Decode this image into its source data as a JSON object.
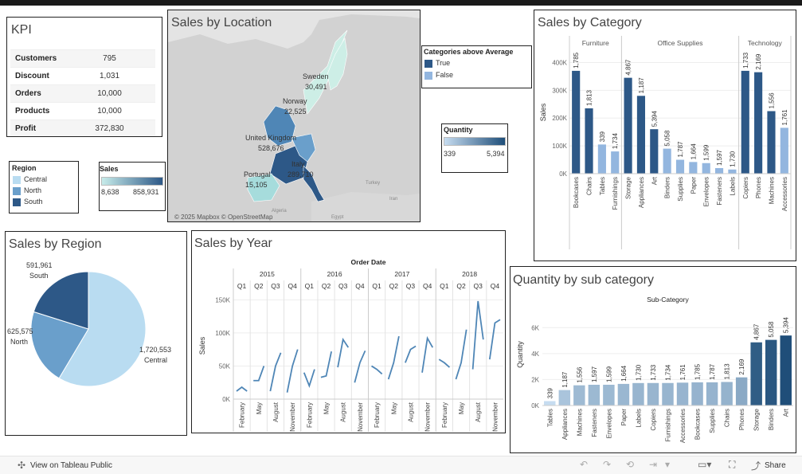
{
  "kpi": {
    "title": "KPI",
    "rows": [
      {
        "label": "Customers",
        "value": "795"
      },
      {
        "label": "Discount",
        "value": "1,031"
      },
      {
        "label": "Orders",
        "value": "10,000"
      },
      {
        "label": "Products",
        "value": "10,000"
      },
      {
        "label": "Profit",
        "value": "372,830"
      }
    ]
  },
  "region_legend": {
    "title": "Region",
    "items": [
      {
        "label": "Central",
        "color": "#b9dcf1"
      },
      {
        "label": "North",
        "color": "#6a9fcb"
      },
      {
        "label": "South",
        "color": "#2d5887"
      }
    ]
  },
  "sales_legend": {
    "title": "Sales",
    "min": "8,638",
    "max": "858,931"
  },
  "map": {
    "title": "Sales by Location",
    "attribution": "© 2025 Mapbox © OpenStreetMap",
    "labels": [
      {
        "name": "Sweden",
        "value": "30,491"
      },
      {
        "name": "Norway",
        "value": "22,525"
      },
      {
        "name": "United Kingdom",
        "value": "528,676"
      },
      {
        "name": "Portugal",
        "value": "15,105"
      },
      {
        "name": "Italy",
        "value": "289,710"
      }
    ],
    "basemap_labels": [
      "Turkey",
      "Iran",
      "Algeria",
      "Egypt"
    ]
  },
  "cat_avg_legend": {
    "title": "Categories above Average",
    "items": [
      {
        "label": "True",
        "color": "#2d5887"
      },
      {
        "label": "False",
        "color": "#93b6df"
      }
    ]
  },
  "quantity_legend": {
    "title": "Quantity",
    "min": "339",
    "max": "5,394"
  },
  "sales_by_category": {
    "title": "Sales by Category",
    "y_label": "Sales",
    "groups": [
      "Furniture",
      "Office Supplies",
      "Technology"
    ],
    "y_ticks": [
      "0K",
      "100K",
      "200K",
      "300K",
      "400K"
    ]
  },
  "sales_by_region": {
    "title": "Sales by Region",
    "slices": [
      {
        "label": "Central",
        "value": "1,720,553",
        "color": "#b9dcf1"
      },
      {
        "label": "North",
        "value": "625,575",
        "color": "#6a9fcb"
      },
      {
        "label": "South",
        "value": "591,961",
        "color": "#2d5887"
      }
    ]
  },
  "sales_by_year": {
    "title": "Sales by Year",
    "header": "Order Date",
    "y_label": "Sales",
    "years": [
      "2015",
      "2016",
      "2017",
      "2018"
    ],
    "quarters": [
      "Q1",
      "Q2",
      "Q3",
      "Q4"
    ],
    "months": [
      "February",
      "May",
      "August",
      "November"
    ],
    "y_ticks": [
      "0K",
      "50K",
      "100K",
      "150K"
    ]
  },
  "quantity_by_sub": {
    "title": "Quantity by sub category",
    "header": "Sub-Category",
    "y_label": "Quantity",
    "y_ticks": [
      "0K",
      "2K",
      "4K",
      "6K"
    ]
  },
  "footer": {
    "view_label": "View on Tableau Public",
    "share_label": "Share"
  },
  "chart_data": [
    {
      "type": "bar",
      "title": "Sales by Category",
      "ylabel": "Sales",
      "ylim": [
        0,
        450000
      ],
      "groups": [
        {
          "name": "Furniture",
          "categories": [
            "Bookcases",
            "Chairs",
            "Tables",
            "Furnishings"
          ],
          "values": [
            370000,
            235000,
            105000,
            80000
          ],
          "labels": [
            "1,785",
            "1,813",
            "339",
            "1,734"
          ],
          "above_avg": [
            true,
            true,
            false,
            false
          ]
        },
        {
          "name": "Office Supplies",
          "categories": [
            "Storage",
            "Appliances",
            "Art",
            "Binders",
            "Supplies",
            "Paper",
            "Envelopes",
            "Fasteners",
            "Labels"
          ],
          "values": [
            345000,
            280000,
            160000,
            90000,
            50000,
            42000,
            38000,
            20000,
            15000
          ],
          "labels": [
            "4,867",
            "1,187",
            "5,394",
            "5,058",
            "1,787",
            "1,664",
            "1,599",
            "1,597",
            "1,730"
          ],
          "above_avg": [
            true,
            true,
            true,
            false,
            false,
            false,
            false,
            false,
            false
          ]
        },
        {
          "name": "Technology",
          "categories": [
            "Copiers",
            "Phones",
            "Machines",
            "Accessories"
          ],
          "values": [
            370000,
            365000,
            225000,
            165000
          ],
          "labels": [
            "1,733",
            "2,169",
            "1,556",
            "1,761"
          ],
          "above_avg": [
            true,
            true,
            true,
            false
          ]
        }
      ]
    },
    {
      "type": "pie",
      "title": "Sales by Region",
      "categories": [
        "Central",
        "North",
        "South"
      ],
      "values": [
        1720553,
        625575,
        591961
      ]
    },
    {
      "type": "line",
      "title": "Sales by Year",
      "xlabel": "Order Date",
      "ylabel": "Sales",
      "ylim": [
        0,
        160000
      ],
      "quarters": [
        {
          "year": "2015",
          "q": "Q1",
          "values": [
            12000,
            18000,
            12000
          ]
        },
        {
          "year": "2015",
          "q": "Q2",
          "values": [
            28000,
            28000,
            50000
          ]
        },
        {
          "year": "2015",
          "q": "Q3",
          "values": [
            12000,
            50000,
            70000
          ]
        },
        {
          "year": "2015",
          "q": "Q4",
          "values": [
            10000,
            50000,
            75000
          ]
        },
        {
          "year": "2016",
          "q": "Q1",
          "values": [
            40000,
            20000,
            45000
          ]
        },
        {
          "year": "2016",
          "q": "Q2",
          "values": [
            33000,
            35000,
            72000
          ]
        },
        {
          "year": "2016",
          "q": "Q3",
          "values": [
            48000,
            90000,
            78000
          ]
        },
        {
          "year": "2016",
          "q": "Q4",
          "values": [
            25000,
            55000,
            73000
          ]
        },
        {
          "year": "2017",
          "q": "Q1",
          "values": [
            50000,
            45000,
            38000
          ]
        },
        {
          "year": "2017",
          "q": "Q2",
          "values": [
            30000,
            55000,
            95000
          ]
        },
        {
          "year": "2017",
          "q": "Q3",
          "values": [
            55000,
            75000,
            80000
          ]
        },
        {
          "year": "2017",
          "q": "Q4",
          "values": [
            40000,
            92000,
            78000
          ]
        },
        {
          "year": "2018",
          "q": "Q1",
          "values": [
            60000,
            55000,
            48000
          ]
        },
        {
          "year": "2018",
          "q": "Q2",
          "values": [
            30000,
            55000,
            105000
          ]
        },
        {
          "year": "2018",
          "q": "Q3",
          "values": [
            45000,
            148000,
            90000
          ]
        },
        {
          "year": "2018",
          "q": "Q4",
          "values": [
            60000,
            115000,
            120000
          ]
        }
      ]
    },
    {
      "type": "bar",
      "title": "Quantity by sub category",
      "xlabel": "Sub-Category",
      "ylabel": "Quantity",
      "ylim": [
        0,
        7000
      ],
      "categories": [
        "Tables",
        "Appliances",
        "Machines",
        "Fasteners",
        "Envelopes",
        "Paper",
        "Labels",
        "Copiers",
        "Furnishings",
        "Accessories",
        "Bookcases",
        "Supplies",
        "Chairs",
        "Phones",
        "Storage",
        "Binders",
        "Art"
      ],
      "values": [
        339,
        1187,
        1556,
        1597,
        1599,
        1664,
        1730,
        1733,
        1734,
        1761,
        1785,
        1787,
        1813,
        2169,
        4867,
        5058,
        5394
      ],
      "labels": [
        "339",
        "1,187",
        "1,556",
        "1,597",
        "1,599",
        "1,664",
        "1,730",
        "1,733",
        "1,734",
        "1,761",
        "1,785",
        "1,787",
        "1,813",
        "2,169",
        "4,867",
        "5,058",
        "5,394"
      ]
    }
  ]
}
